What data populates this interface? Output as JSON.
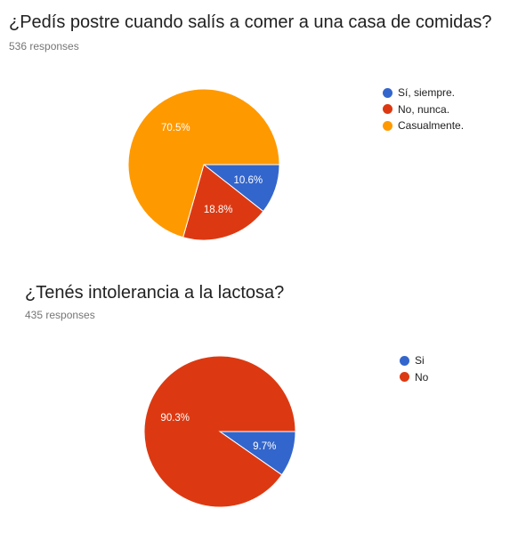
{
  "chart_data": [
    {
      "type": "pie",
      "title": "¿Pedís postre cuando salís a comer a una casa de comidas?",
      "subtitle": "536 responses",
      "legend_position": "right",
      "slices": [
        {
          "label": "Sí, siempre.",
          "value": 10.6,
          "display": "10.6%",
          "color": "#3366cc"
        },
        {
          "label": "No, nunca.",
          "value": 18.8,
          "display": "18.8%",
          "color": "#dc3912"
        },
        {
          "label": "Casualmente.",
          "value": 70.5,
          "display": "70.5%",
          "color": "#ff9900"
        }
      ]
    },
    {
      "type": "pie",
      "title": "¿Tenés intolerancia a la lactosa?",
      "subtitle": "435 responses",
      "legend_position": "right",
      "slices": [
        {
          "label": "Si",
          "value": 9.7,
          "display": "9.7%",
          "color": "#3366cc"
        },
        {
          "label": "No",
          "value": 90.3,
          "display": "90.3%",
          "color": "#dc3912"
        }
      ]
    }
  ]
}
